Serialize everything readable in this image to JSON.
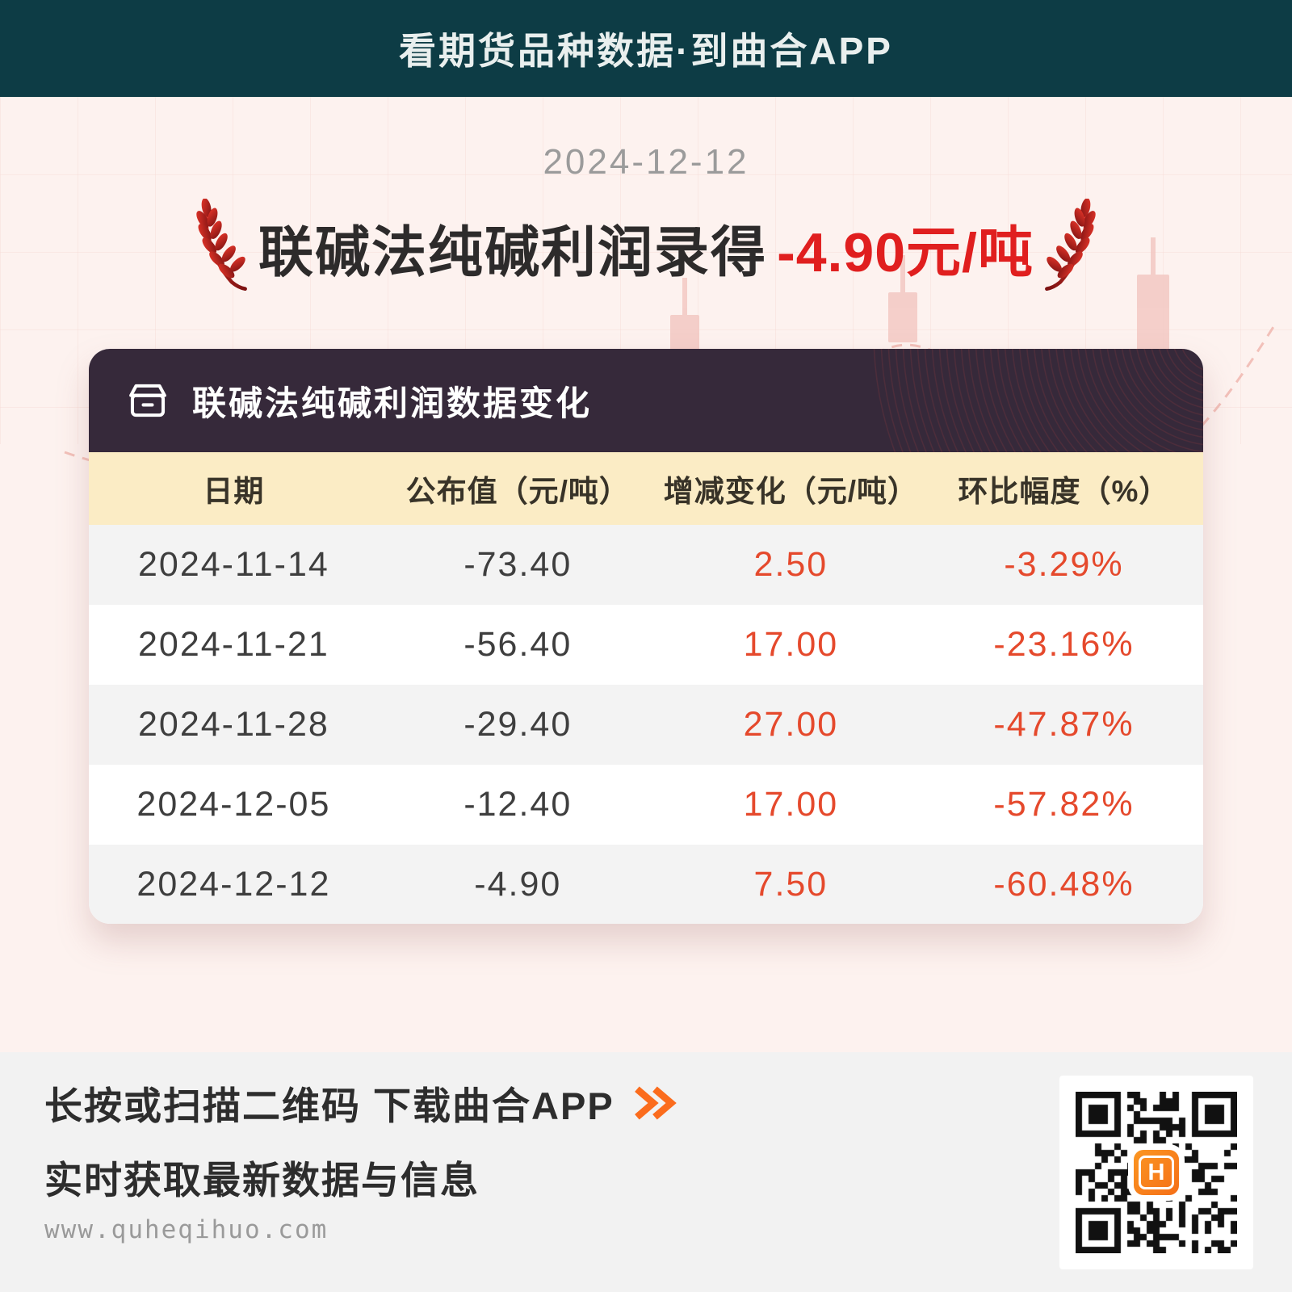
{
  "banner": {
    "title": "看期货品种数据·到曲合APP"
  },
  "hero": {
    "date": "2024-12-12",
    "headline_prefix": "联碱法纯碱利润录得",
    "headline_value": "-4.90元/吨"
  },
  "chart_data": {
    "type": "table",
    "title": "联碱法纯碱利润数据变化",
    "columns": [
      "日期",
      "公布值（元/吨）",
      "增减变化（元/吨）",
      "环比幅度（%）"
    ],
    "rows": [
      [
        "2024-11-14",
        "-73.40",
        "2.50",
        "-3.29%"
      ],
      [
        "2024-11-21",
        "-56.40",
        "17.00",
        "-23.16%"
      ],
      [
        "2024-11-28",
        "-29.40",
        "27.00",
        "-47.87%"
      ],
      [
        "2024-12-05",
        "-12.40",
        "17.00",
        "-57.82%"
      ],
      [
        "2024-12-12",
        "-4.90",
        "7.50",
        "-60.48%"
      ]
    ]
  },
  "footer": {
    "cta_line1": "长按或扫描二维码  下载曲合APP",
    "cta_line2": "实时获取最新数据与信息",
    "website": "www.quheqihuo.com",
    "qr_center_logo": "H"
  },
  "colors": {
    "banner_bg": "#0d3c45",
    "hero_bg": "#fdf2ef",
    "headline_red": "#e01f1f",
    "card_header_bg": "#36293a",
    "table_header_bg": "#fbecc5",
    "row_alt_bg": "#f3f3f3",
    "table_red": "#e5492c",
    "cta_chevron_orange": "#fb6c1d",
    "qr_logo_orange": "#f97c1f"
  }
}
